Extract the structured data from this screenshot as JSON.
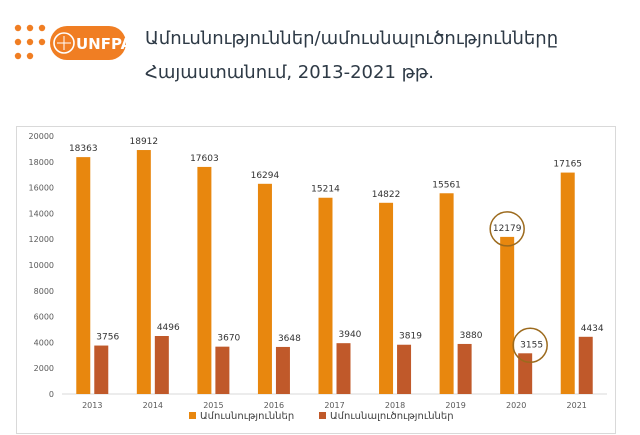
{
  "logo": {
    "text": "UNFPA",
    "color": "#F07E23"
  },
  "title": {
    "line1": "Ամուսնություններ/ամուսնալուծությունները",
    "line2": "Հայաստանում, 2013-2021 թթ."
  },
  "colors": {
    "series1": "#E8870E",
    "series2": "#C0592A",
    "highlight": "#9C6A1D"
  },
  "chart_data": {
    "type": "bar",
    "categories": [
      "2013",
      "2014",
      "2015",
      "2016",
      "2017",
      "2018",
      "2019",
      "2020",
      "2021"
    ],
    "series": [
      {
        "name": "Ամուսնություններ",
        "values": [
          18363,
          18912,
          17603,
          16294,
          15214,
          14822,
          15561,
          12179,
          17165
        ]
      },
      {
        "name": "Ամուսնալուծություններ",
        "values": [
          3756,
          4496,
          3670,
          3648,
          3940,
          3819,
          3880,
          3155,
          4434
        ]
      }
    ],
    "y_ticks": [
      "0",
      "2000",
      "4000",
      "6000",
      "8000",
      "10000",
      "12000",
      "14000",
      "16000",
      "18000",
      "20000"
    ],
    "ylim": [
      0,
      20000
    ],
    "grid": false,
    "legend": "bottom-center",
    "highlighted": [
      {
        "series": 0,
        "category": "2020"
      },
      {
        "series": 1,
        "category": "2020"
      }
    ]
  }
}
